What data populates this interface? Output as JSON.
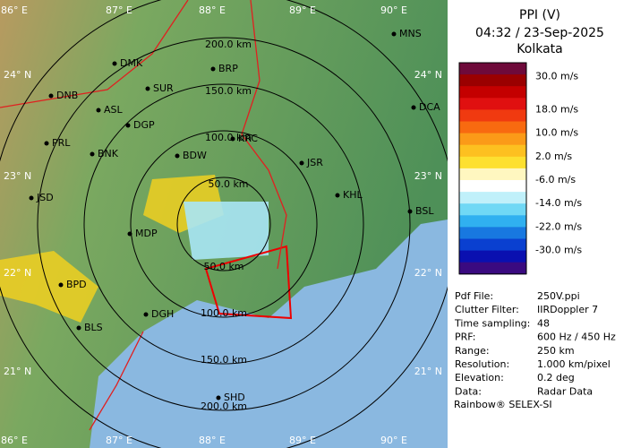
{
  "map": {
    "lon_labels": [
      "86° E",
      "87° E",
      "88° E",
      "89° E",
      "90° E"
    ],
    "lat_labels": [
      "24° N",
      "23° N",
      "22° N",
      "21° N"
    ],
    "ring_labels_north": [
      "200.0 km",
      "150.0 km",
      "100.0 km",
      "50.0 km"
    ],
    "ring_labels_south": [
      "50.0 km",
      "100.0 km",
      "150.0 km",
      "200.0 km"
    ],
    "cities": [
      "MNS",
      "DMK",
      "BRP",
      "DNB",
      "SUR",
      "ASL",
      "DGP",
      "PRL",
      "BNK",
      "KRC",
      "BDW",
      "JSR",
      "KHL",
      "JSD",
      "BSL",
      "MDP",
      "BPD",
      "DGH",
      "BLS",
      "SHD",
      "DCA"
    ]
  },
  "panel": {
    "title": "PPI (V)",
    "time": "04:32 / 23-Sep-2025",
    "station": "Kolkata",
    "legend": {
      "colors": [
        "#6e0a3a",
        "#9a0000",
        "#c40000",
        "#e01010",
        "#f03a10",
        "#f86a10",
        "#fb9a18",
        "#fdc020",
        "#fde030",
        "#fff7c0",
        "#ffffff",
        "#c0f0fa",
        "#70d8f5",
        "#30b0f0",
        "#1878e0",
        "#0a40d0",
        "#0a10b0",
        "#3a0a80"
      ],
      "labels": [
        "30.0 m/s",
        "18.0 m/s",
        "10.0 m/s",
        "2.0 m/s",
        "-6.0 m/s",
        "-14.0 m/s",
        "-22.0 m/s",
        "-30.0 m/s"
      ]
    },
    "info": [
      [
        "Pdf File:",
        "250V.ppi"
      ],
      [
        "Clutter Filter:",
        "IIRDoppler 7"
      ],
      [
        "Time sampling:",
        "48"
      ],
      [
        "PRF:",
        "600 Hz / 450 Hz"
      ],
      [
        "Range:",
        "250 km"
      ],
      [
        "Resolution:",
        "1.000 km/pixel"
      ],
      [
        "Elevation:",
        "0.2 deg"
      ],
      [
        "Data:",
        "Radar Data"
      ]
    ],
    "footer": "Rainbow® SELEX-SI"
  }
}
